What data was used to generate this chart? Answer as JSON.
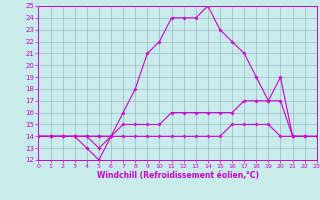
{
  "xlabel": "Windchill (Refroidissement éolien,°C)",
  "xlim": [
    0,
    23
  ],
  "ylim": [
    12,
    25
  ],
  "xticks": [
    0,
    1,
    2,
    3,
    4,
    5,
    6,
    7,
    8,
    9,
    10,
    11,
    12,
    13,
    14,
    15,
    16,
    17,
    18,
    19,
    20,
    21,
    22,
    23
  ],
  "yticks": [
    12,
    13,
    14,
    15,
    16,
    17,
    18,
    19,
    20,
    21,
    22,
    23,
    24,
    25
  ],
  "bg_color": "#c8ecec",
  "line_color": "#cc00cc",
  "grid_color": "#a0b4c8",
  "series": [
    {
      "x": [
        0,
        1,
        2,
        3,
        4,
        5,
        6,
        7,
        8,
        9,
        10,
        11,
        12,
        13,
        14,
        15,
        16,
        17,
        18,
        19,
        20,
        21,
        22
      ],
      "y": [
        14,
        14,
        14,
        14,
        14,
        13,
        14,
        16,
        18,
        21,
        22,
        24,
        24,
        24,
        25,
        23,
        22,
        21,
        19,
        17,
        17,
        14,
        14
      ]
    },
    {
      "x": [
        0,
        1,
        2,
        3,
        4,
        5,
        6
      ],
      "y": [
        14,
        14,
        14,
        14,
        13,
        12,
        14
      ]
    },
    {
      "x": [
        0,
        1,
        2,
        3,
        4,
        5,
        6,
        7,
        8,
        9,
        10,
        11,
        12,
        13,
        14,
        15,
        16,
        17,
        18,
        19,
        20,
        21,
        22,
        23
      ],
      "y": [
        14,
        14,
        14,
        14,
        14,
        14,
        14,
        15,
        15,
        15,
        15,
        16,
        16,
        16,
        16,
        16,
        16,
        17,
        17,
        17,
        19,
        14,
        14,
        14
      ]
    },
    {
      "x": [
        0,
        1,
        2,
        3,
        4,
        5,
        6,
        7,
        8,
        9,
        10,
        11,
        12,
        13,
        14,
        15,
        16,
        17,
        18,
        19,
        20,
        21,
        22,
        23
      ],
      "y": [
        14,
        14,
        14,
        14,
        14,
        14,
        14,
        14,
        14,
        14,
        14,
        14,
        14,
        14,
        14,
        14,
        15,
        15,
        15,
        15,
        14,
        14,
        14,
        14
      ]
    }
  ]
}
